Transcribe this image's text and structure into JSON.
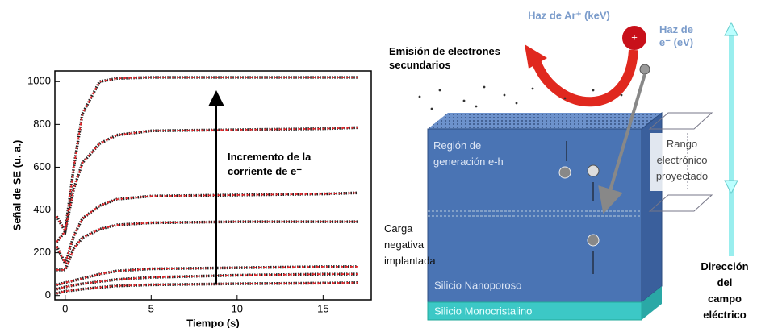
{
  "chart_data": {
    "type": "line",
    "x_label": "Tiempo (s)",
    "y_label": "Señal de SE (u. a.)",
    "annotation": [
      "Incremento  de la",
      "corriente de e⁻"
    ],
    "x": [
      -0.5,
      0,
      0.5,
      1,
      2,
      3,
      5,
      10,
      15,
      17
    ],
    "series": [
      {
        "color": "#222222",
        "values": [
          250,
          300,
          600,
          850,
          1000,
          1015,
          1020,
          1020,
          1020,
          1020
        ]
      },
      {
        "color": "#222222",
        "values": [
          370,
          300,
          500,
          620,
          710,
          750,
          770,
          775,
          780,
          785
        ]
      },
      {
        "color": "#222222",
        "values": [
          230,
          150,
          280,
          360,
          420,
          450,
          465,
          470,
          475,
          480
        ]
      },
      {
        "color": "#222222",
        "values": [
          120,
          120,
          220,
          270,
          310,
          330,
          340,
          345,
          345,
          345
        ]
      },
      {
        "color": "#222222",
        "values": [
          50,
          60,
          70,
          80,
          100,
          115,
          125,
          130,
          135,
          135
        ]
      },
      {
        "color": "#222222",
        "values": [
          30,
          40,
          48,
          55,
          65,
          75,
          85,
          95,
          100,
          100
        ]
      },
      {
        "color": "#222222",
        "values": [
          10,
          20,
          25,
          30,
          38,
          45,
          50,
          55,
          58,
          60
        ]
      }
    ],
    "fit_color": "#e8262a",
    "xlim": [
      -0.6,
      17.8
    ],
    "xticks": [
      0,
      5,
      10,
      15
    ],
    "ylim": [
      -20,
      1050
    ],
    "yticks": [
      0,
      200,
      400,
      600,
      800,
      1000
    ]
  },
  "diagram": {
    "ar_beam": "Haz de Ar⁺ (keV)",
    "e_beam": [
      "Haz de",
      "e⁻ (eV)"
    ],
    "emission": [
      "Emisión de electrones",
      "secundarios"
    ],
    "generation": [
      "Región de",
      "generación e-h"
    ],
    "range": [
      "Rango",
      "electrónico",
      "proyectado"
    ],
    "charge": [
      "Carga",
      "negativa",
      "implantada"
    ],
    "nanoporous": "Silicio Nanoporoso",
    "monocrystalline": "Silicio Monocristalino",
    "field": [
      "Dirección",
      "del",
      "campo",
      "eléctrico"
    ]
  }
}
